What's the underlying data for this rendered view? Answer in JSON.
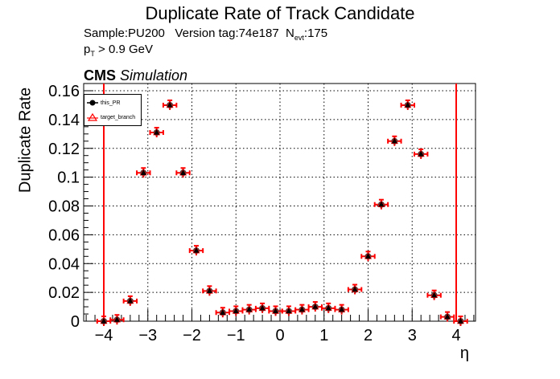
{
  "chart_data": {
    "type": "scatter",
    "title": "Duplicate Rate of Track Candidate",
    "subtitle_line1": {
      "sample": "Sample:PU200",
      "version": "Version tag:74e187",
      "nevt_prefix": "N",
      "nevt_sub": "evt",
      "nevt_value": ":175"
    },
    "subtitle_line2": {
      "pt": "p",
      "pt_sub": "T",
      "cut": " > 0.9 GeV"
    },
    "cms_label": "CMS",
    "cms_sublabel": "Simulation",
    "xlabel": "η",
    "ylabel": "Duplicate Rate",
    "xlim": [
      -4.5,
      4.5
    ],
    "ylim": [
      0,
      0.165
    ],
    "xticks": [
      "−4",
      "−3",
      "−2",
      "−1",
      "0",
      "1",
      "2",
      "3",
      "4"
    ],
    "yticks": [
      "0",
      "0.02",
      "0.04",
      "0.06",
      "0.08",
      "0.1",
      "0.12",
      "0.14",
      "0.16"
    ],
    "grid": true,
    "legend_position": "top-left",
    "vertical_lines": [
      -4,
      4
    ],
    "x": [
      -4.0,
      -3.7,
      -3.4,
      -3.1,
      -2.8,
      -2.5,
      -2.2,
      -1.9,
      -1.6,
      -1.3,
      -1.0,
      -0.7,
      -0.4,
      -0.1,
      0.2,
      0.5,
      0.8,
      1.1,
      1.4,
      1.7,
      2.0,
      2.3,
      2.6,
      2.9,
      3.2,
      3.5,
      3.8,
      4.1
    ],
    "series": [
      {
        "name": "this_PR",
        "color": "#000000",
        "marker": "filled-circle",
        "values": [
          0.0,
          0.001,
          0.014,
          0.103,
          0.131,
          0.15,
          0.103,
          0.049,
          0.021,
          0.006,
          0.007,
          0.008,
          0.009,
          0.007,
          0.007,
          0.008,
          0.01,
          0.009,
          0.008,
          0.022,
          0.045,
          0.081,
          0.125,
          0.15,
          0.116,
          0.018,
          0.003,
          0.0
        ]
      },
      {
        "name": "target_branch",
        "color": "#ff0000",
        "marker": "open-triangle",
        "values": [
          0.0,
          0.001,
          0.014,
          0.103,
          0.131,
          0.15,
          0.103,
          0.049,
          0.021,
          0.006,
          0.007,
          0.008,
          0.009,
          0.007,
          0.007,
          0.008,
          0.01,
          0.009,
          0.008,
          0.022,
          0.045,
          0.081,
          0.125,
          0.15,
          0.116,
          0.018,
          0.003,
          0.0
        ]
      }
    ]
  },
  "colors": {
    "line_red": "#ff0000",
    "marker_black": "#000000",
    "grid": "#000000"
  }
}
